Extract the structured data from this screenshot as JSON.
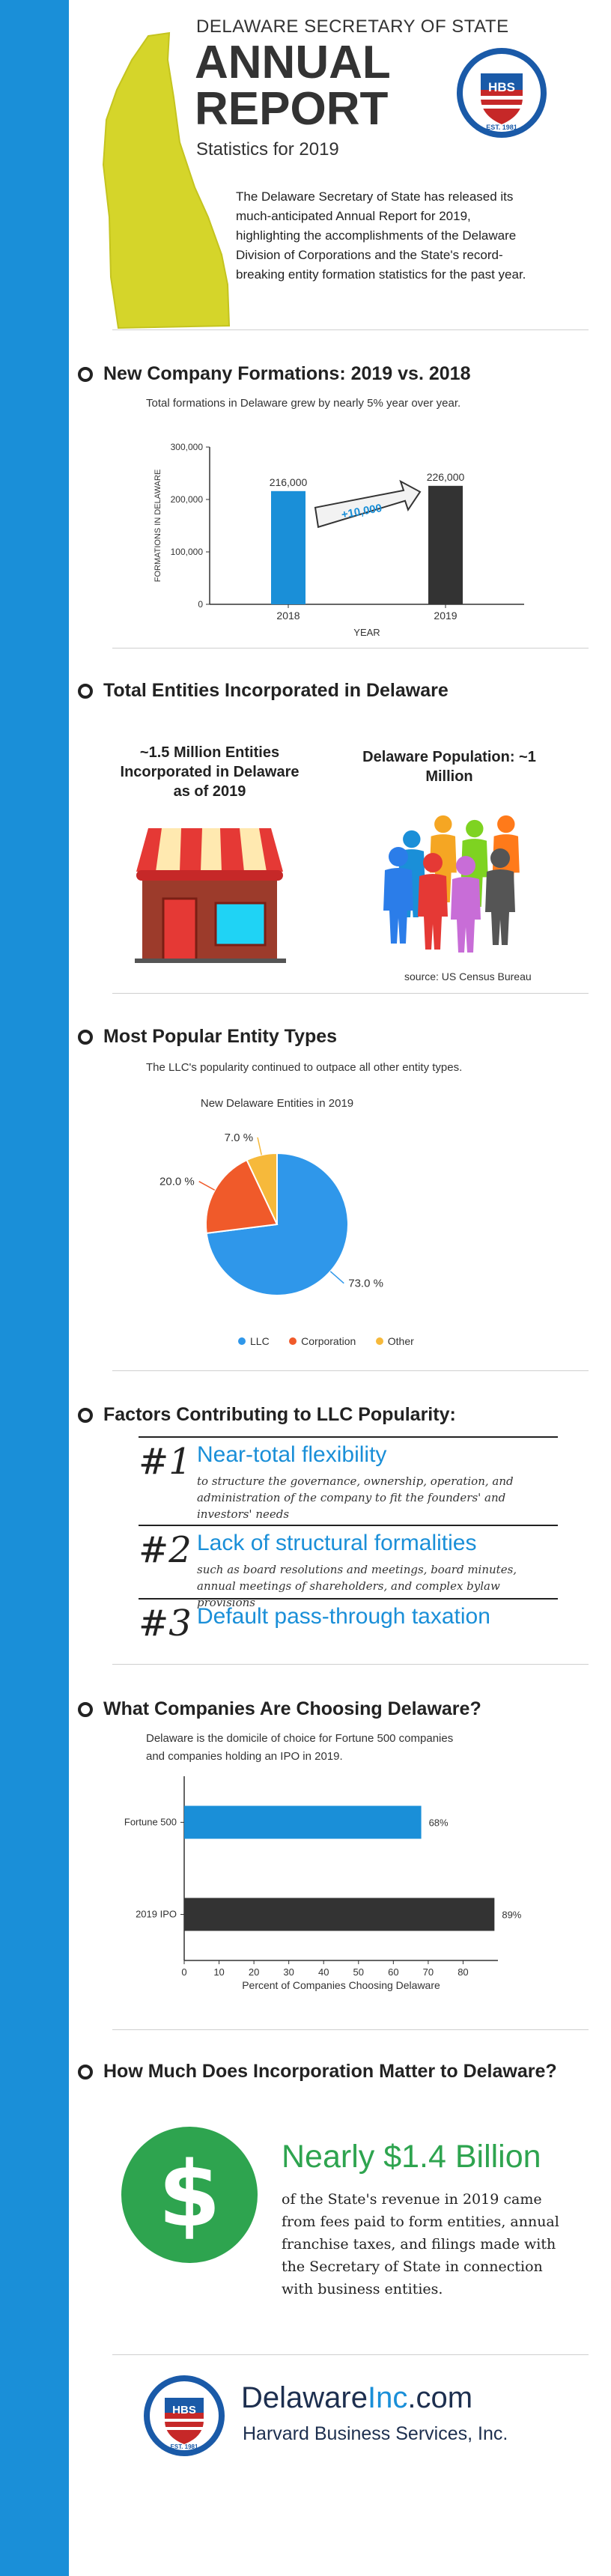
{
  "header": {
    "agency": "DELAWARE SECRETARY OF STATE",
    "title_line1": "ANNUAL",
    "title_line2": "REPORT",
    "subtitle": "Statistics for 2019",
    "intro": "The Delaware Secretary of State has released its much-anticipated Annual Report for 2019, highlighting the accomplishments of the Delaware Division of Corporations and the State's record-breaking entity formation statistics for the past year.",
    "logo_text": "HBS",
    "logo_est": "EST. 1981"
  },
  "section1": {
    "heading": "New Company Formations: 2019 vs. 2018",
    "subtitle": "Total formations in Delaware grew by nearly 5% year over year.",
    "growth_label": "+10,000"
  },
  "section2": {
    "heading": "Total Entities Incorporated in Delaware",
    "entities_text": "~1.5 Million Entities Incorporated in Delaware as of 2019",
    "population_text": "Delaware Population: ~1 Million",
    "source": "source: US Census Bureau"
  },
  "section3": {
    "heading": "Most Popular Entity Types",
    "subtitle": "The LLC's popularity continued to outpace all other entity types."
  },
  "section4": {
    "heading": "Factors Contributing to LLC Popularity:",
    "factors": [
      {
        "num": "#1",
        "title": "Near-total flexibility",
        "desc": "to structure the governance, ownership, operation, and administration of the company to fit the founders' and investors' needs"
      },
      {
        "num": "#2",
        "title": "Lack of structural formalities",
        "desc": "such as board resolutions and meetings, board minutes, annual meetings of shareholders, and complex bylaw provisions"
      },
      {
        "num": "#3",
        "title": "Default pass-through taxation",
        "desc": ""
      }
    ]
  },
  "section5": {
    "heading": "What Companies Are Choosing Delaware?",
    "subtitle": "Delaware is the domicile of choice for Fortune 500 companies and companies holding an IPO in 2019."
  },
  "section6": {
    "heading": "How Much Does Incorporation Matter to Delaware?",
    "amount": "Nearly $1.4 Billion",
    "desc": "of the State's revenue in 2019 came from fees paid to form entities, annual franchise taxes, and filings made with the Secretary of State in connection with business entities.",
    "dollar": "$"
  },
  "footer": {
    "brand_a": "Delaware",
    "brand_b": "Inc",
    "brand_c": ".com",
    "company": "Harvard Business Services, Inc."
  },
  "colors": {
    "blue": "#1a8fd8",
    "dark": "#333333",
    "llc": "#2f97ea",
    "corporation": "#f05a2a",
    "other": "#f6b93b",
    "green": "#2ea44f"
  },
  "chart_data": [
    {
      "type": "bar",
      "categories": [
        "2018",
        "2019"
      ],
      "values": [
        216000,
        226000
      ],
      "value_labels": [
        "216,000",
        "226,000"
      ],
      "xlabel": "YEAR",
      "ylabel": "FORMATIONS IN DELAWARE",
      "ylim": [
        0,
        300000
      ],
      "yticks": [
        0,
        100000,
        200000,
        300000
      ],
      "ytick_labels": [
        "0",
        "100,000",
        "200,000",
        "300,000"
      ],
      "colors": [
        "#1a8fd8",
        "#333333"
      ]
    },
    {
      "type": "pie",
      "title": "New Delaware Entities in 2019",
      "labels": [
        "LLC",
        "Corporation",
        "Other"
      ],
      "values": [
        73.0,
        20.0,
        7.0
      ],
      "value_labels": [
        "73.0 %",
        "20.0 %",
        "7.0 %"
      ],
      "colors": [
        "#2f97ea",
        "#f05a2a",
        "#f6b93b"
      ],
      "legend": "bottom"
    },
    {
      "type": "bar",
      "orientation": "horizontal",
      "categories": [
        "Fortune 500",
        "2019 IPO"
      ],
      "values": [
        68,
        89
      ],
      "value_labels": [
        "68%",
        "89%"
      ],
      "xlabel": "Percent of Companies Choosing Delaware",
      "xlim": [
        0,
        90
      ],
      "xticks": [
        0,
        10,
        20,
        30,
        40,
        50,
        60,
        70,
        80
      ],
      "colors": [
        "#1a8fd8",
        "#333333"
      ]
    }
  ]
}
